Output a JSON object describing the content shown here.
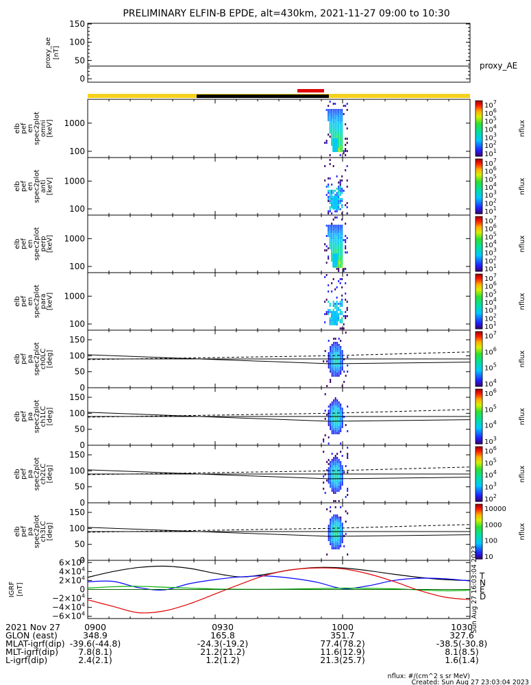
{
  "title": "PRELIMINARY ELFIN-B EPDE, alt=430km, 2021-11-27 09:00 to 10:30",
  "colors": {
    "science_zone_bar": "#f5d21e",
    "eclipse_bar": "#000000",
    "fast_mode_bar": "#e00000",
    "igrf_T": "#000000",
    "igrf_N": "#0000ff",
    "igrf_E": "#00b000",
    "igrf_D": "#e00000"
  },
  "chart_data": [
    {
      "type": "line",
      "panel": "proxy_ae",
      "ylabel": "proxy_ae [nT]",
      "ylim": [
        0,
        150
      ],
      "yticks": [
        "150",
        "100",
        "50",
        "0"
      ],
      "series": [
        {
          "name": "proxy_AE",
          "x": [
            "09:00",
            "10:30"
          ],
          "values": [
            35,
            35
          ]
        }
      ]
    },
    {
      "type": "heatmap",
      "panel": "omni",
      "ylabel": [
        "elb",
        "pef",
        "en",
        "spec2plot",
        "omni",
        "[keV]"
      ],
      "yscale": "log",
      "ylim": [
        60,
        7000
      ],
      "yticks": [
        "1000",
        "100"
      ],
      "activity_window": [
        "09:56",
        "09:59"
      ],
      "colorbar": {
        "label": "nflux",
        "scale": "log",
        "range": [
          10,
          10000000
        ],
        "ticks": [
          "10^7",
          "10^6",
          "10^5",
          "10^4",
          "10^3",
          "10^2",
          "10^1"
        ]
      }
    },
    {
      "type": "heatmap",
      "panel": "anti",
      "ylabel": [
        "elb",
        "pef",
        "en",
        "spec2plot",
        "anti",
        "[keV]"
      ],
      "yscale": "log",
      "ylim": [
        60,
        7000
      ],
      "yticks": [
        "1000",
        "100"
      ],
      "activity_window": [
        "09:56",
        "09:59"
      ],
      "colorbar": {
        "label": "nflux",
        "scale": "log",
        "range": [
          10,
          10000000
        ],
        "ticks": [
          "10^7",
          "10^6",
          "10^5",
          "10^4",
          "10^3",
          "10^2",
          "10^1"
        ]
      }
    },
    {
      "type": "heatmap",
      "panel": "perp",
      "ylabel": [
        "elb",
        "pef",
        "en",
        "spec2plot",
        "perp",
        "[keV]"
      ],
      "yscale": "log",
      "ylim": [
        60,
        7000
      ],
      "yticks": [
        "1000",
        "100"
      ],
      "activity_window": [
        "09:56",
        "09:59"
      ],
      "colorbar": {
        "label": "nflux",
        "scale": "log",
        "range": [
          10,
          10000000
        ],
        "ticks": [
          "10^7",
          "10^6",
          "10^5",
          "10^4",
          "10^3",
          "10^2",
          "10^1"
        ]
      }
    },
    {
      "type": "heatmap",
      "panel": "para",
      "ylabel": [
        "elb",
        "pef",
        "en",
        "spec2plot",
        "para",
        "[keV]"
      ],
      "yscale": "log",
      "ylim": [
        60,
        7000
      ],
      "yticks": [
        "1000",
        "100"
      ],
      "activity_window": [
        "09:56",
        "09:59"
      ],
      "colorbar": {
        "label": "nflux",
        "scale": "log",
        "range": [
          10,
          10000000
        ],
        "ticks": [
          "10^7",
          "10^6",
          "10^5",
          "10^4",
          "10^3",
          "10^2",
          "10^1"
        ]
      }
    },
    {
      "type": "heatmap",
      "panel": "ch0LC",
      "ylabel": [
        "elb",
        "pef",
        "pa",
        "spec2plot",
        "ch0LC",
        "[deg]"
      ],
      "ylim": [
        0,
        180
      ],
      "yticks": [
        "150",
        "100",
        "50",
        "0"
      ],
      "activity_window": [
        "09:56",
        "09:59"
      ],
      "colorbar": {
        "label": "nflux",
        "scale": "log",
        "range": [
          3000,
          10000000
        ],
        "ticks": [
          "10^7",
          "10^6",
          "10^5",
          "10^4"
        ]
      }
    },
    {
      "type": "heatmap",
      "panel": "ch1LC",
      "ylabel": [
        "elb",
        "pef",
        "pa",
        "spec2plot",
        "ch1LC",
        "[deg]"
      ],
      "ylim": [
        0,
        180
      ],
      "yticks": [
        "150",
        "100",
        "50",
        "0"
      ],
      "activity_window": [
        "09:56",
        "09:59"
      ],
      "colorbar": {
        "label": "nflux",
        "scale": "log",
        "range": [
          1000,
          3000000
        ],
        "ticks": [
          "10^6",
          "10^5",
          "10^4",
          "10^3"
        ]
      }
    },
    {
      "type": "heatmap",
      "panel": "ch2LC",
      "ylabel": [
        "elb",
        "pef",
        "pa",
        "spec2plot",
        "ch2LC",
        "[deg]"
      ],
      "ylim": [
        0,
        180
      ],
      "yticks": [
        "150",
        "100",
        "50",
        "0"
      ],
      "activity_window": [
        "09:56",
        "09:59"
      ],
      "colorbar": {
        "label": "nflux",
        "scale": "log",
        "range": [
          100,
          1000000
        ],
        "ticks": [
          "10^6",
          "10^5",
          "10^4",
          "10^3",
          "10^2"
        ]
      }
    },
    {
      "type": "heatmap",
      "panel": "ch3LC",
      "ylabel": [
        "elb",
        "pef",
        "pa",
        "spec2plot",
        "ch3LC",
        "[deg]"
      ],
      "ylim": [
        0,
        180
      ],
      "yticks": [
        "150",
        "100",
        "50",
        "0"
      ],
      "activity_window": [
        "09:56",
        "09:59"
      ],
      "colorbar": {
        "label": "nflux",
        "scale": "log",
        "range": [
          10,
          10000
        ],
        "ticks": [
          "10000",
          "1000",
          "100",
          "10"
        ]
      }
    },
    {
      "type": "line",
      "panel": "igrf",
      "ylabel": "IGRF [nT]",
      "ylim": [
        -65000,
        65000
      ],
      "yticks": [
        "6×10^4",
        "4×10^4",
        "2×10^4",
        "0",
        "−2×10^4",
        "−4×10^4",
        "−6×10^4"
      ],
      "legend": [
        "T",
        "N",
        "E",
        "D"
      ],
      "series": [
        {
          "name": "T",
          "x": [
            "09:00",
            "09:06",
            "09:12",
            "09:18",
            "09:24",
            "09:30",
            "09:36",
            "09:42",
            "09:48",
            "09:54",
            "10:00",
            "10:06",
            "10:12",
            "10:18",
            "10:24",
            "10:30"
          ],
          "values": [
            27000,
            40000,
            49000,
            52000,
            47000,
            36000,
            28000,
            34000,
            44000,
            49000,
            48000,
            42000,
            34000,
            27000,
            22000,
            20000
          ]
        },
        {
          "name": "N",
          "x": [
            "09:00",
            "09:06",
            "09:12",
            "09:18",
            "09:24",
            "09:30",
            "09:36",
            "09:42",
            "09:48",
            "09:54",
            "10:00",
            "10:06",
            "10:12",
            "10:18",
            "10:24",
            "10:30"
          ],
          "values": [
            17000,
            18000,
            4000,
            -1000,
            13000,
            22000,
            28000,
            30000,
            25000,
            16000,
            2000,
            8000,
            20000,
            25000,
            24000,
            19000
          ]
        },
        {
          "name": "E",
          "x": [
            "09:00",
            "09:06",
            "09:12",
            "09:18",
            "09:24",
            "09:30",
            "09:36",
            "09:42",
            "09:48",
            "09:54",
            "10:00",
            "10:06",
            "10:12",
            "10:18",
            "10:24",
            "10:30"
          ],
          "values": [
            3000,
            6000,
            7000,
            5000,
            3000,
            1000,
            500,
            300,
            1000,
            2000,
            3000,
            2500,
            1500,
            -1000,
            -3000,
            -2000
          ]
        },
        {
          "name": "D",
          "x": [
            "09:00",
            "09:06",
            "09:12",
            "09:18",
            "09:24",
            "09:30",
            "09:36",
            "09:42",
            "09:48",
            "09:54",
            "10:00",
            "10:06",
            "10:12",
            "10:18",
            "10:24",
            "10:30"
          ],
          "values": [
            -23000,
            -38000,
            -52000,
            -48000,
            -32000,
            -10000,
            12000,
            32000,
            44000,
            48000,
            46000,
            35000,
            18000,
            -2000,
            -17000,
            -23000
          ]
        }
      ]
    }
  ],
  "proxy_ae_label": "proxy_AE",
  "x_ticks": [
    "0900",
    "0930",
    "1000",
    "1030"
  ],
  "sidebar_stamp": "Sun Aug 27 16:03:04 2023",
  "footer_rows": [
    {
      "label": "2021 Nov 27",
      "values": [
        "0900",
        "0930",
        "1000",
        "1030"
      ]
    },
    {
      "label": "GLON (east)",
      "values": [
        "348.9",
        "165.8",
        "351.7",
        "327.6"
      ]
    },
    {
      "label": "MLAT-igrf(dip)",
      "values": [
        "-39.6(-44.8)",
        "-24.3(-19.2)",
        "77.4(78.2)",
        "-38.5(-30.8)"
      ]
    },
    {
      "label": "MLT-igrf(dip)",
      "values": [
        "7.8(8.1)",
        "21.2(21.2)",
        "11.6(12.9)",
        "8.1(8.5)"
      ]
    },
    {
      "label": "L-igrf(dip)",
      "values": [
        "2.4(2.1)",
        "1.2(1.2)",
        "21.3(25.7)",
        "1.6(1.4)"
      ]
    }
  ],
  "units_note": "nflux: #/(cm^2 s sr MeV)",
  "created_note": "Created: Sun Aug 27 23:03:04 2023"
}
